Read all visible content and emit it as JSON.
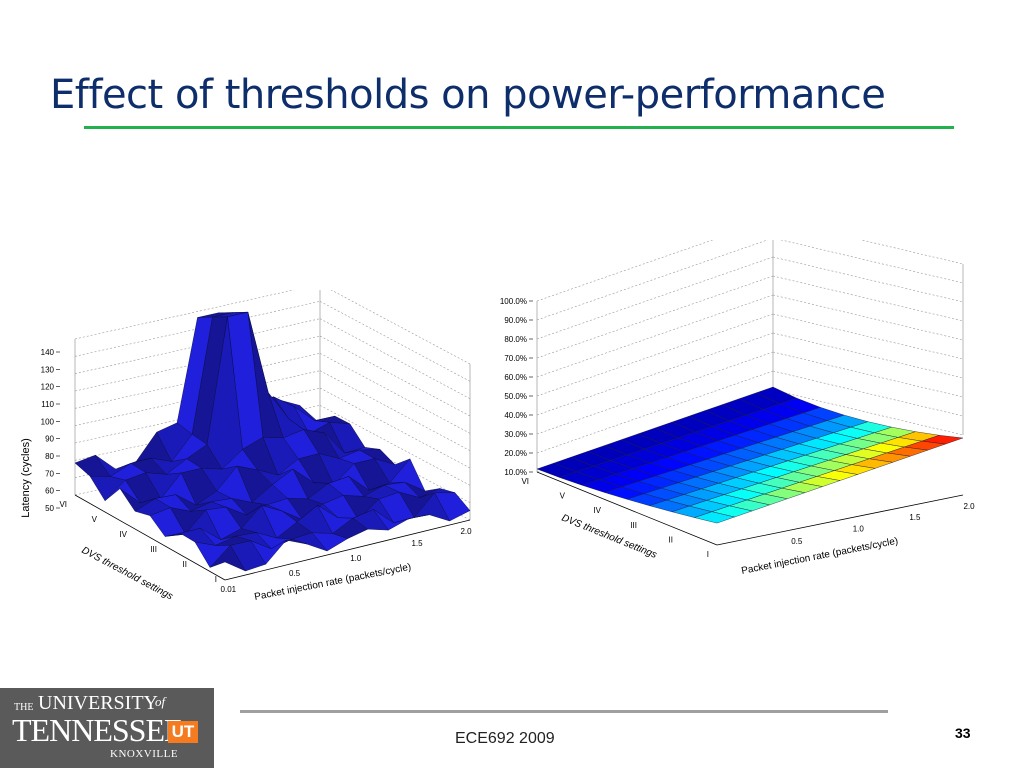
{
  "slide": {
    "title": "Effect of thresholds on power-performance",
    "footer": "ECE692   2009",
    "page_number": "33",
    "accent_color": "#22b14c",
    "title_color": "#0e2d6b"
  },
  "logo": {
    "the": "THE",
    "university": "UNIVERSITY",
    "of": "of",
    "tennessee": "TENNESSEE",
    "ut": "UT",
    "knoxville": "KNOXVILLE"
  },
  "plots": {
    "left": {
      "ylabel": "Latency (cycles)",
      "z_ticks": [
        "140",
        "130",
        "120",
        "110",
        "100",
        "90",
        "80",
        "70",
        "60",
        "50"
      ],
      "x_label": "Packet injection rate (packets/cycle)",
      "x_ticks": [
        "0.01",
        "0.5",
        "1.0",
        "1.5",
        "2.0"
      ],
      "y_label": "DVS threshold settings",
      "y_ticks": [
        "VI",
        "V",
        "IV",
        "III",
        "II",
        "I"
      ],
      "color": "#1c1cc8"
    },
    "right": {
      "z_ticks": [
        "100.0%",
        "90.0%",
        "80.0%",
        "70.0%",
        "60.0%",
        "50.0%",
        "40.0%",
        "30.0%",
        "20.0%",
        "10.0%"
      ],
      "x_label": "Packet injection rate (packets/cycle)",
      "x_ticks": [
        "0.5",
        "1.0",
        "1.5",
        "2.0"
      ],
      "y_label": "DVS threshold settings",
      "y_ticks": [
        "VI",
        "V",
        "IV",
        "III",
        "II",
        "I"
      ],
      "colormap": "jet"
    }
  }
}
